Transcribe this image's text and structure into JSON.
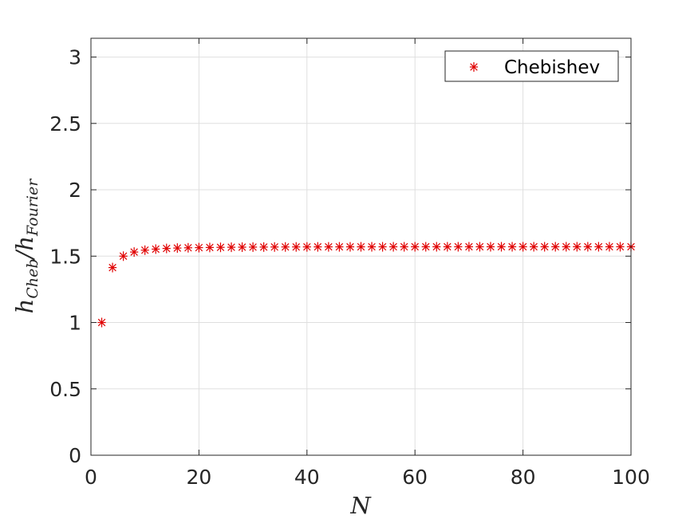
{
  "chart_data": {
    "type": "scatter",
    "marker": "asterisk",
    "marker_color": "#e00000",
    "xlabel": "N",
    "ylabel_main": "h",
    "ylabel_num_sub": "Cheb",
    "ylabel_slash": "/",
    "ylabel_den_sub": "Fourier",
    "xlim": [
      0,
      100
    ],
    "ylim": [
      0,
      3.14159
    ],
    "grid": true,
    "legend_position": "top-right",
    "xticks": [
      0,
      20,
      40,
      60,
      80,
      100
    ],
    "xtick_labels": [
      "0",
      "20",
      "40",
      "60",
      "80",
      "100"
    ],
    "yticks": [
      0,
      0.5,
      1,
      1.5,
      2,
      2.5,
      3
    ],
    "ytick_labels": [
      "0",
      "0.5",
      "1",
      "1.5",
      "2",
      "2.5",
      "3"
    ],
    "series": [
      {
        "name": "Chebishev",
        "x": [
          2,
          4,
          6,
          8,
          10,
          12,
          14,
          16,
          18,
          20,
          22,
          24,
          26,
          28,
          30,
          32,
          34,
          36,
          38,
          40,
          42,
          44,
          46,
          48,
          50,
          52,
          54,
          56,
          58,
          60,
          62,
          64,
          66,
          68,
          70,
          72,
          74,
          76,
          78,
          80,
          82,
          84,
          86,
          88,
          90,
          92,
          94,
          96,
          98,
          100
        ],
        "y": [
          1.0,
          1.414,
          1.5,
          1.531,
          1.545,
          1.553,
          1.558,
          1.561,
          1.563,
          1.5643,
          1.5654,
          1.5663,
          1.5671,
          1.5677,
          1.5682,
          1.5686,
          1.569,
          1.5693,
          1.5695,
          1.5697,
          1.5699,
          1.57,
          1.5701,
          1.5702,
          1.5703,
          1.5704,
          1.5704,
          1.5705,
          1.5705,
          1.5706,
          1.5706,
          1.5706,
          1.5706,
          1.5707,
          1.5707,
          1.5707,
          1.5707,
          1.5707,
          1.5707,
          1.5707,
          1.5707,
          1.5707,
          1.5708,
          1.5708,
          1.5708,
          1.5708,
          1.5708,
          1.5708,
          1.5708,
          1.5708
        ]
      }
    ]
  }
}
